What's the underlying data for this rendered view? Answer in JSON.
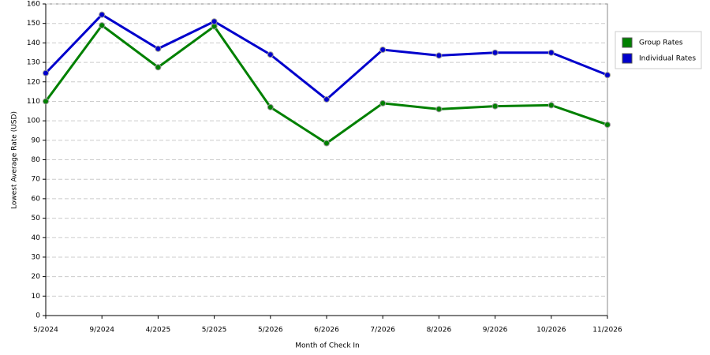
{
  "chart_data": {
    "type": "line",
    "x_label": "Month of Check In",
    "y_label": "Lowest Average Rate (USD)",
    "categories": [
      "5/2024",
      "9/2024",
      "4/2025",
      "5/2025",
      "5/2026",
      "6/2026",
      "7/2026",
      "8/2026",
      "9/2026",
      "10/2026",
      "11/2026"
    ],
    "series": [
      {
        "name": "Group Rates",
        "color": "#008000",
        "values": [
          110,
          149,
          127.5,
          148.5,
          107,
          88.5,
          109,
          106,
          107.5,
          108,
          98
        ]
      },
      {
        "name": "Individual Rates",
        "color": "#0000cc",
        "values": [
          124.5,
          154.5,
          137,
          151,
          134,
          111,
          136.5,
          133.5,
          135,
          135,
          123.5
        ]
      }
    ],
    "ylim": [
      0,
      160
    ],
    "yticks": [
      0,
      10,
      20,
      30,
      40,
      50,
      60,
      70,
      80,
      90,
      100,
      110,
      120,
      130,
      140,
      150,
      160
    ],
    "grid": true
  }
}
